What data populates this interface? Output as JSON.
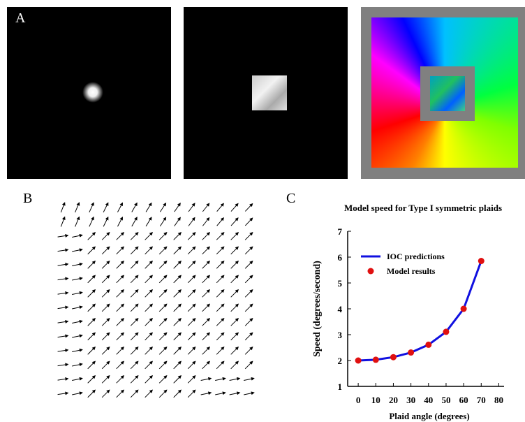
{
  "panels": {
    "a": {
      "label": "A"
    },
    "b": {
      "label": "B"
    },
    "c": {
      "label": "C"
    }
  },
  "chart_data": {
    "type": "line",
    "title": "Model speed for Type I symmetric plaids",
    "x_label": "Plaid angle (degrees)",
    "y_label": "Speed (degrees/second)",
    "x": [
      0,
      10,
      20,
      30,
      40,
      50,
      60,
      70
    ],
    "series": [
      {
        "name": "IOC predictions",
        "type": "line",
        "color": "#1010e0",
        "values": [
          2.0,
          2.03,
          2.13,
          2.31,
          2.61,
          3.11,
          4.0,
          5.85
        ]
      },
      {
        "name": "Model results",
        "type": "scatter",
        "color": "#e01010",
        "values": [
          2.0,
          2.03,
          2.13,
          2.31,
          2.61,
          3.11,
          4.0,
          5.85
        ]
      }
    ],
    "xlim": [
      -6,
      83
    ],
    "xticks": [
      0,
      10,
      20,
      30,
      40,
      50,
      60,
      70,
      80
    ],
    "ylim": [
      1,
      7
    ],
    "yticks": [
      1,
      2,
      3,
      4,
      5,
      6,
      7
    ]
  }
}
